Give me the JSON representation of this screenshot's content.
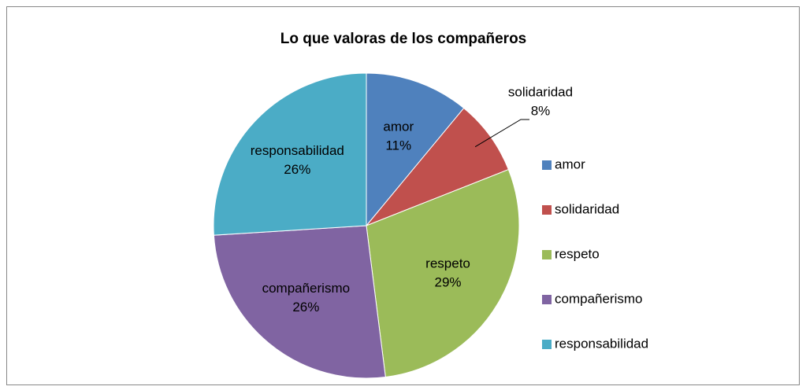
{
  "chart_data": {
    "type": "pie",
    "title": "Lo que valoras de los compañeros",
    "categories": [
      "amor",
      "solidaridad",
      "respeto",
      "compañerismo",
      "responsabilidad"
    ],
    "values": [
      11,
      8,
      29,
      26,
      26
    ],
    "value_labels": [
      "11%",
      "8%",
      "29%",
      "26%",
      "26%"
    ],
    "colors": [
      "#4f81bd",
      "#c0504d",
      "#9bbb59",
      "#8064a2",
      "#4bacc6"
    ],
    "legend": "right"
  }
}
